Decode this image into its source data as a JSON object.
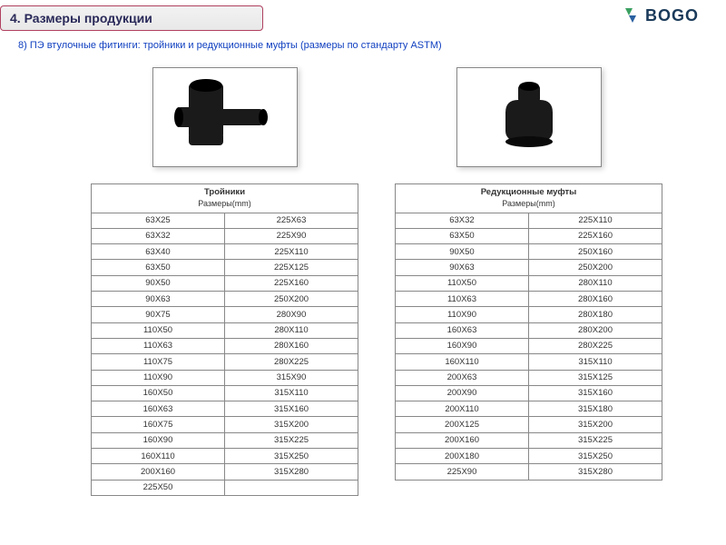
{
  "header": {
    "title": "4. Размеры продукции"
  },
  "logo": {
    "text": "BOGO"
  },
  "subtitle": "8) ПЭ втулочные фитинги: тройники и редукционные муфты (размеры по стандарту ASTM)",
  "colors": {
    "header_border": "#b04060",
    "header_text": "#2a2a5a",
    "subtitle_text": "#1040c0",
    "logo_green": "#3aa060",
    "logo_blue": "#2a60a0",
    "logo_text": "#1a3a5a",
    "table_border": "#888888",
    "product_fill": "#1a1a1a"
  },
  "left_table": {
    "title": "Тройники",
    "subtitle": "Размеры(mm)",
    "rows": [
      [
        "63X25",
        "225X63"
      ],
      [
        "63X32",
        "225X90"
      ],
      [
        "63X40",
        "225X110"
      ],
      [
        "63X50",
        "225X125"
      ],
      [
        "90X50",
        "225X160"
      ],
      [
        "90X63",
        "250X200"
      ],
      [
        "90X75",
        "280X90"
      ],
      [
        "110X50",
        "280X110"
      ],
      [
        "110X63",
        "280X160"
      ],
      [
        "110X75",
        "280X225"
      ],
      [
        "110X90",
        "315X90"
      ],
      [
        "160X50",
        "315X110"
      ],
      [
        "160X63",
        "315X160"
      ],
      [
        "160X75",
        "315X200"
      ],
      [
        "160X90",
        "315X225"
      ],
      [
        "160X110",
        "315X250"
      ],
      [
        "200X160",
        "315X280"
      ],
      [
        "225X50",
        ""
      ]
    ]
  },
  "right_table": {
    "title": "Редукционные муфты",
    "subtitle": "Размеры(mm)",
    "rows": [
      [
        "63X32",
        "225X110"
      ],
      [
        "63X50",
        "225X160"
      ],
      [
        "90X50",
        "250X160"
      ],
      [
        "90X63",
        "250X200"
      ],
      [
        "110X50",
        "280X110"
      ],
      [
        "110X63",
        "280X160"
      ],
      [
        "110X90",
        "280X180"
      ],
      [
        "160X63",
        "280X200"
      ],
      [
        "160X90",
        "280X225"
      ],
      [
        "160X110",
        "315X110"
      ],
      [
        "200X63",
        "315X125"
      ],
      [
        "200X90",
        "315X160"
      ],
      [
        "200X110",
        "315X180"
      ],
      [
        "200X125",
        "315X200"
      ],
      [
        "200X160",
        "315X225"
      ],
      [
        "200X180",
        "315X250"
      ],
      [
        "225X90",
        "315X280"
      ]
    ]
  }
}
